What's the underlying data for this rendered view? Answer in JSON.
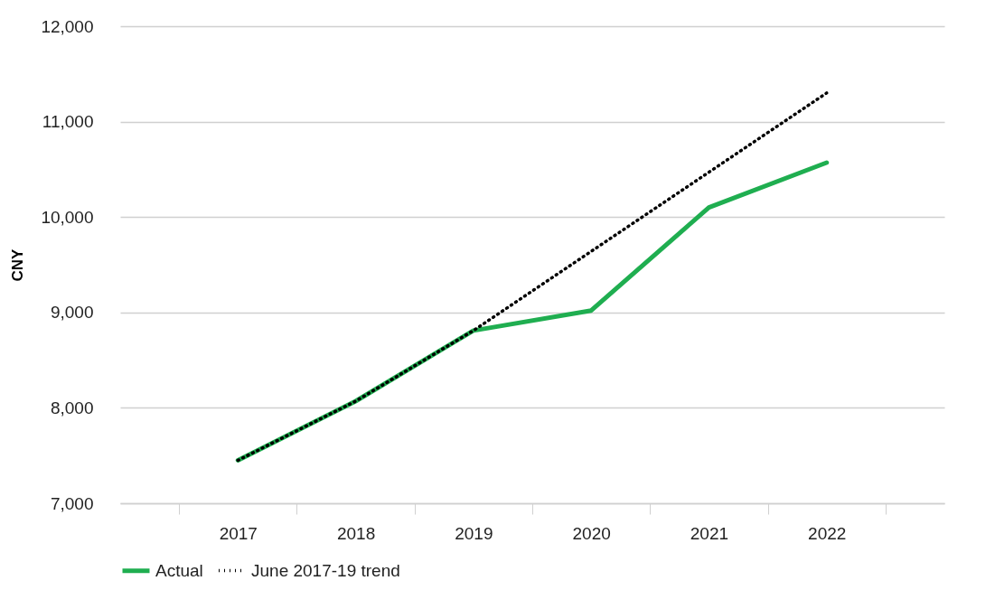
{
  "chart_data": {
    "type": "line",
    "ylabel": "CNY",
    "categories": [
      "2017",
      "2018",
      "2019",
      "2020",
      "2021",
      "2022"
    ],
    "series": [
      {
        "name": "Actual",
        "color": "#1fae50",
        "line_style": "solid",
        "values": [
          7450,
          8070,
          8810,
          9020,
          10100,
          10570
        ]
      },
      {
        "name": "June 2017-19 trend",
        "color": "#000000",
        "line_style": "dotted",
        "values": [
          7450,
          8070,
          8810,
          9640,
          10470,
          11300
        ]
      }
    ],
    "ylim": [
      7000,
      12000
    ],
    "yticks": [
      {
        "value": 7000,
        "label": "7,000"
      },
      {
        "value": 8000,
        "label": "8,000"
      },
      {
        "value": 9000,
        "label": "9,000"
      },
      {
        "value": 10000,
        "label": "10,000"
      },
      {
        "value": 11000,
        "label": "11,000"
      },
      {
        "value": 12000,
        "label": "12,000"
      }
    ],
    "grid": "y",
    "legend": "bottom",
    "marker": "none"
  }
}
